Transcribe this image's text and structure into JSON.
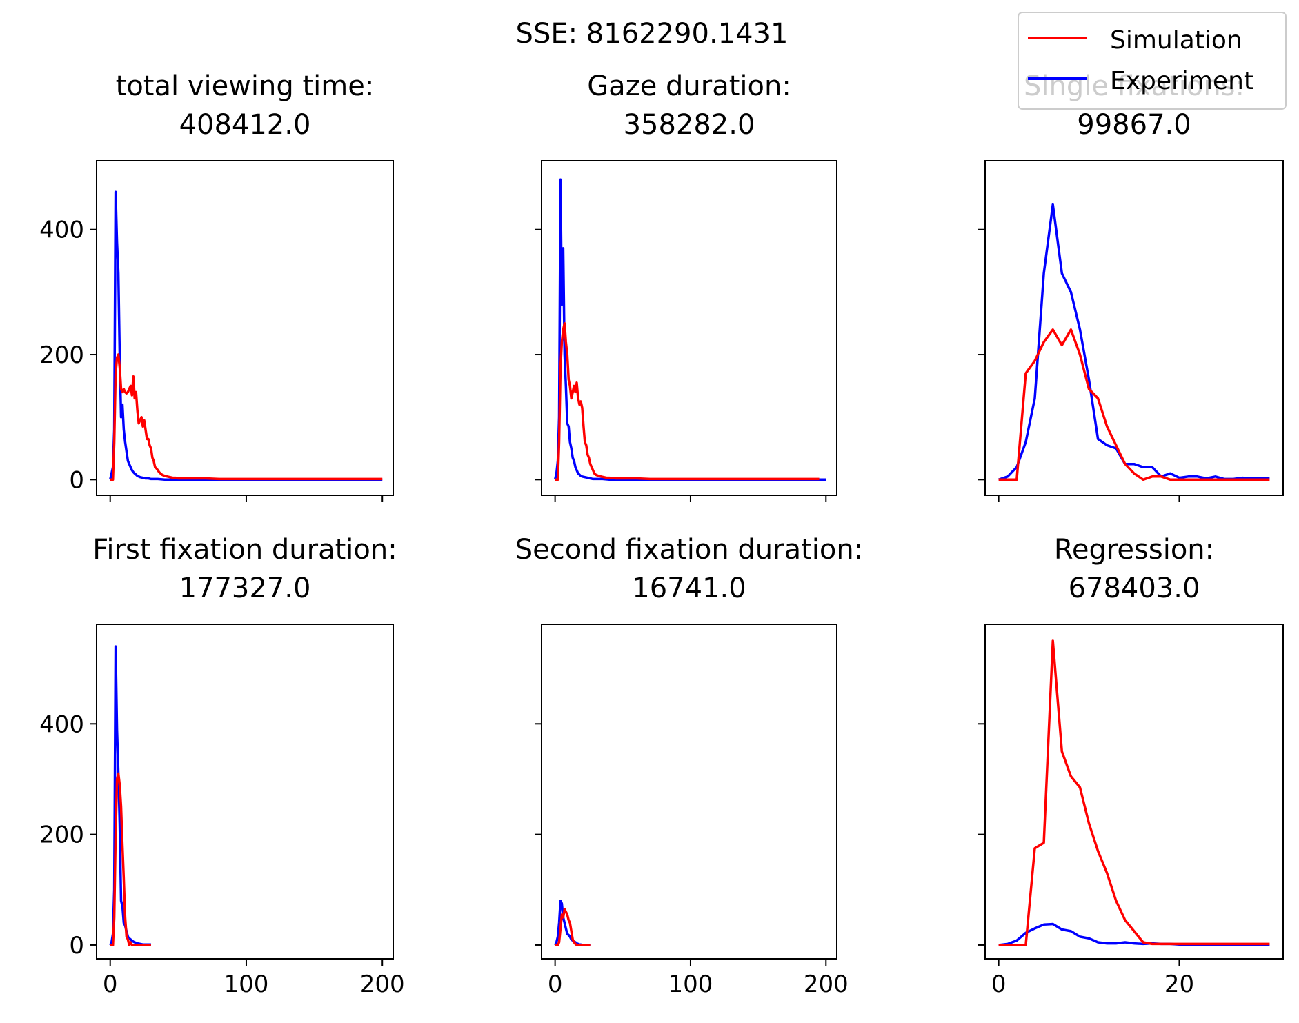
{
  "suptitle": "SSE: 8162290.1431",
  "legend": {
    "placement": "top-right",
    "items": [
      {
        "label": "Simulation",
        "color": "#ff0000"
      },
      {
        "label": "Experiment",
        "color": "#0000ff"
      }
    ]
  },
  "colors": {
    "simulation": "#ff0000",
    "experiment": "#0000ff",
    "axes": "#000000"
  },
  "chart_data": [
    {
      "type": "line",
      "title": "total viewing time:\n408412.0",
      "xlim": [
        -10,
        208
      ],
      "ylim": [
        -25,
        510
      ],
      "xticks": [
        0,
        100,
        200
      ],
      "yticks": [
        0,
        200,
        400
      ],
      "show_xtick_labels": false,
      "show_ytick_labels": true,
      "series": [
        {
          "name": "Experiment",
          "x": [
            0,
            1,
            2,
            3,
            4,
            5,
            6,
            7,
            8,
            9,
            10,
            11,
            12,
            13,
            14,
            15,
            16,
            17,
            18,
            19,
            20,
            22,
            24,
            26,
            28,
            30,
            35,
            40,
            50,
            60,
            80,
            100,
            150,
            200
          ],
          "y": [
            0,
            10,
            20,
            80,
            460,
            380,
            330,
            200,
            100,
            120,
            80,
            60,
            45,
            30,
            25,
            20,
            15,
            12,
            10,
            8,
            6,
            4,
            3,
            2,
            2,
            1,
            1,
            0,
            0,
            0,
            0,
            0,
            0,
            0
          ]
        },
        {
          "name": "Simulation",
          "x": [
            0,
            2,
            3,
            4,
            5,
            6,
            7,
            8,
            9,
            10,
            11,
            12,
            13,
            14,
            15,
            16,
            17,
            18,
            19,
            20,
            21,
            22,
            23,
            24,
            25,
            26,
            27,
            28,
            29,
            30,
            31,
            32,
            33,
            34,
            35,
            36,
            37,
            38,
            40,
            42,
            44,
            46,
            48,
            50,
            55,
            60,
            70,
            80,
            100,
            120,
            150,
            180,
            200
          ],
          "y": [
            0,
            0,
            60,
            170,
            195,
            200,
            180,
            145,
            140,
            145,
            140,
            138,
            140,
            145,
            150,
            135,
            165,
            130,
            140,
            110,
            90,
            95,
            100,
            85,
            95,
            80,
            65,
            65,
            55,
            50,
            35,
            30,
            20,
            18,
            15,
            12,
            10,
            8,
            6,
            5,
            4,
            3,
            3,
            2,
            2,
            2,
            2,
            1,
            1,
            1,
            1,
            1,
            1
          ]
        }
      ]
    },
    {
      "type": "line",
      "title": "Gaze duration:\n358282.0",
      "xlim": [
        -10,
        208
      ],
      "ylim": [
        -25,
        510
      ],
      "xticks": [
        0,
        100,
        200
      ],
      "yticks": [
        0,
        200,
        400
      ],
      "show_xtick_labels": false,
      "show_ytick_labels": false,
      "series": [
        {
          "name": "Experiment",
          "x": [
            0,
            1,
            2,
            3,
            4,
            5,
            6,
            7,
            8,
            9,
            10,
            11,
            12,
            13,
            14,
            15,
            16,
            17,
            18,
            19,
            20,
            22,
            24,
            26,
            28,
            30,
            35,
            40,
            50,
            60,
            80,
            100,
            150,
            200
          ],
          "y": [
            0,
            10,
            30,
            100,
            480,
            280,
            370,
            200,
            150,
            90,
            85,
            60,
            50,
            35,
            30,
            20,
            15,
            10,
            8,
            6,
            5,
            4,
            3,
            2,
            1,
            1,
            1,
            0,
            0,
            0,
            0,
            0,
            0,
            0
          ]
        },
        {
          "name": "Simulation",
          "x": [
            0,
            2,
            3,
            4,
            5,
            6,
            7,
            8,
            9,
            10,
            11,
            12,
            13,
            14,
            15,
            16,
            17,
            18,
            19,
            20,
            21,
            22,
            23,
            24,
            25,
            26,
            27,
            28,
            29,
            30,
            32,
            34,
            36,
            38,
            40,
            45,
            50,
            55,
            60,
            70,
            80,
            100,
            120,
            150,
            180,
            195
          ],
          "y": [
            0,
            0,
            60,
            180,
            220,
            240,
            250,
            220,
            200,
            160,
            150,
            130,
            140,
            150,
            140,
            155,
            130,
            120,
            125,
            115,
            85,
            60,
            55,
            40,
            35,
            25,
            20,
            15,
            10,
            8,
            6,
            5,
            4,
            3,
            3,
            2,
            2,
            2,
            2,
            1,
            1,
            1,
            1,
            1,
            1,
            1
          ]
        }
      ]
    },
    {
      "type": "line",
      "title": "Single fixations:\n99867.0",
      "xlim": [
        -1.5,
        31.5
      ],
      "ylim": [
        -25,
        510
      ],
      "xticks": [
        0,
        20
      ],
      "yticks": [
        0,
        200,
        400
      ],
      "show_xtick_labels": false,
      "show_ytick_labels": false,
      "series": [
        {
          "name": "Experiment",
          "x": [
            0,
            1,
            2,
            3,
            4,
            5,
            6,
            7,
            8,
            9,
            10,
            11,
            12,
            13,
            14,
            15,
            16,
            17,
            18,
            19,
            20,
            21,
            22,
            23,
            24,
            25,
            26,
            27,
            28,
            29,
            30
          ],
          "y": [
            0,
            5,
            20,
            60,
            130,
            330,
            440,
            330,
            300,
            240,
            160,
            65,
            55,
            50,
            25,
            25,
            20,
            20,
            5,
            10,
            3,
            5,
            5,
            2,
            5,
            1,
            1,
            3,
            2,
            2,
            2
          ]
        },
        {
          "name": "Simulation",
          "x": [
            0,
            1,
            2,
            3,
            4,
            5,
            6,
            7,
            8,
            9,
            10,
            11,
            12,
            13,
            14,
            15,
            16,
            17,
            18,
            19,
            20,
            21,
            22,
            23,
            24,
            25,
            26,
            27,
            28,
            29,
            30
          ],
          "y": [
            0,
            0,
            0,
            170,
            190,
            220,
            240,
            215,
            240,
            200,
            145,
            130,
            85,
            55,
            25,
            10,
            0,
            5,
            5,
            0,
            0,
            0,
            0,
            0,
            0,
            0,
            0,
            0,
            0,
            0,
            0
          ]
        }
      ]
    },
    {
      "type": "line",
      "title": "First fixation duration:\n177327.0",
      "xlim": [
        -10,
        208
      ],
      "ylim": [
        -25,
        580
      ],
      "xticks": [
        0,
        100,
        200
      ],
      "yticks": [
        0,
        200,
        400
      ],
      "show_xtick_labels": true,
      "show_ytick_labels": true,
      "series": [
        {
          "name": "Experiment",
          "x": [
            0,
            1,
            2,
            3,
            4,
            5,
            6,
            7,
            8,
            9,
            10,
            11,
            12,
            13,
            14,
            15,
            16,
            17,
            18,
            19,
            20,
            22,
            24,
            26,
            28,
            30
          ],
          "y": [
            0,
            5,
            20,
            100,
            540,
            390,
            310,
            220,
            80,
            70,
            40,
            35,
            25,
            15,
            12,
            10,
            8,
            6,
            5,
            4,
            3,
            2,
            1,
            1,
            1,
            1
          ]
        },
        {
          "name": "Simulation",
          "x": [
            0,
            2,
            3,
            4,
            5,
            6,
            7,
            8,
            9,
            10,
            11,
            12,
            13,
            14,
            15,
            16,
            17,
            18,
            20,
            22,
            24,
            26,
            28,
            30
          ],
          "y": [
            0,
            0,
            50,
            200,
            300,
            310,
            290,
            250,
            180,
            120,
            50,
            15,
            10,
            0,
            5,
            0,
            0,
            0,
            0,
            0,
            0,
            0,
            0,
            0
          ]
        }
      ]
    },
    {
      "type": "line",
      "title": "Second fixation duration:\n16741.0",
      "xlim": [
        -10,
        208
      ],
      "ylim": [
        -25,
        580
      ],
      "xticks": [
        0,
        100,
        200
      ],
      "yticks": [
        0,
        200,
        400
      ],
      "show_xtick_labels": true,
      "show_ytick_labels": false,
      "series": [
        {
          "name": "Experiment",
          "x": [
            0,
            1,
            2,
            3,
            4,
            5,
            6,
            7,
            8,
            9,
            10,
            11,
            12,
            13,
            14,
            15,
            16,
            17,
            18,
            19,
            20,
            22,
            24,
            26
          ],
          "y": [
            0,
            5,
            15,
            40,
            80,
            75,
            50,
            40,
            30,
            20,
            18,
            15,
            10,
            8,
            6,
            5,
            3,
            2,
            1,
            1,
            0,
            0,
            0,
            0
          ]
        },
        {
          "name": "Simulation",
          "x": [
            0,
            1,
            2,
            3,
            4,
            5,
            6,
            7,
            8,
            9,
            10,
            11,
            12,
            13,
            14,
            15,
            16,
            17,
            18,
            20,
            22,
            24,
            26
          ],
          "y": [
            0,
            0,
            0,
            5,
            30,
            55,
            50,
            65,
            60,
            55,
            45,
            40,
            25,
            10,
            5,
            2,
            0,
            0,
            0,
            0,
            0,
            0,
            0
          ]
        }
      ]
    },
    {
      "type": "line",
      "title": "Regression:\n678403.0",
      "xlim": [
        -1.5,
        31.5
      ],
      "ylim": [
        -25,
        580
      ],
      "xticks": [
        0,
        20
      ],
      "yticks": [
        0,
        200,
        400
      ],
      "show_xtick_labels": true,
      "show_ytick_labels": false,
      "series": [
        {
          "name": "Experiment",
          "x": [
            0,
            1,
            2,
            3,
            4,
            5,
            6,
            7,
            8,
            9,
            10,
            11,
            12,
            13,
            14,
            15,
            16,
            17,
            18,
            19,
            20,
            21,
            22,
            23,
            24,
            25,
            26,
            27,
            28,
            29,
            30
          ],
          "y": [
            0,
            2,
            8,
            22,
            30,
            37,
            38,
            28,
            25,
            15,
            12,
            5,
            3,
            3,
            5,
            3,
            2,
            3,
            2,
            2,
            1,
            1,
            1,
            1,
            1,
            1,
            1,
            1,
            1,
            1,
            1
          ]
        },
        {
          "name": "Simulation",
          "x": [
            0,
            1,
            2,
            3,
            4,
            5,
            6,
            7,
            8,
            9,
            10,
            11,
            12,
            13,
            14,
            15,
            16,
            17,
            18,
            19,
            20,
            21,
            22,
            23,
            24,
            25,
            26,
            27,
            28,
            29,
            30
          ],
          "y": [
            0,
            0,
            0,
            0,
            175,
            185,
            550,
            350,
            305,
            285,
            220,
            170,
            130,
            80,
            45,
            25,
            5,
            2,
            2,
            2,
            2,
            2,
            2,
            2,
            2,
            2,
            2,
            2,
            2,
            2,
            2
          ]
        }
      ]
    }
  ]
}
